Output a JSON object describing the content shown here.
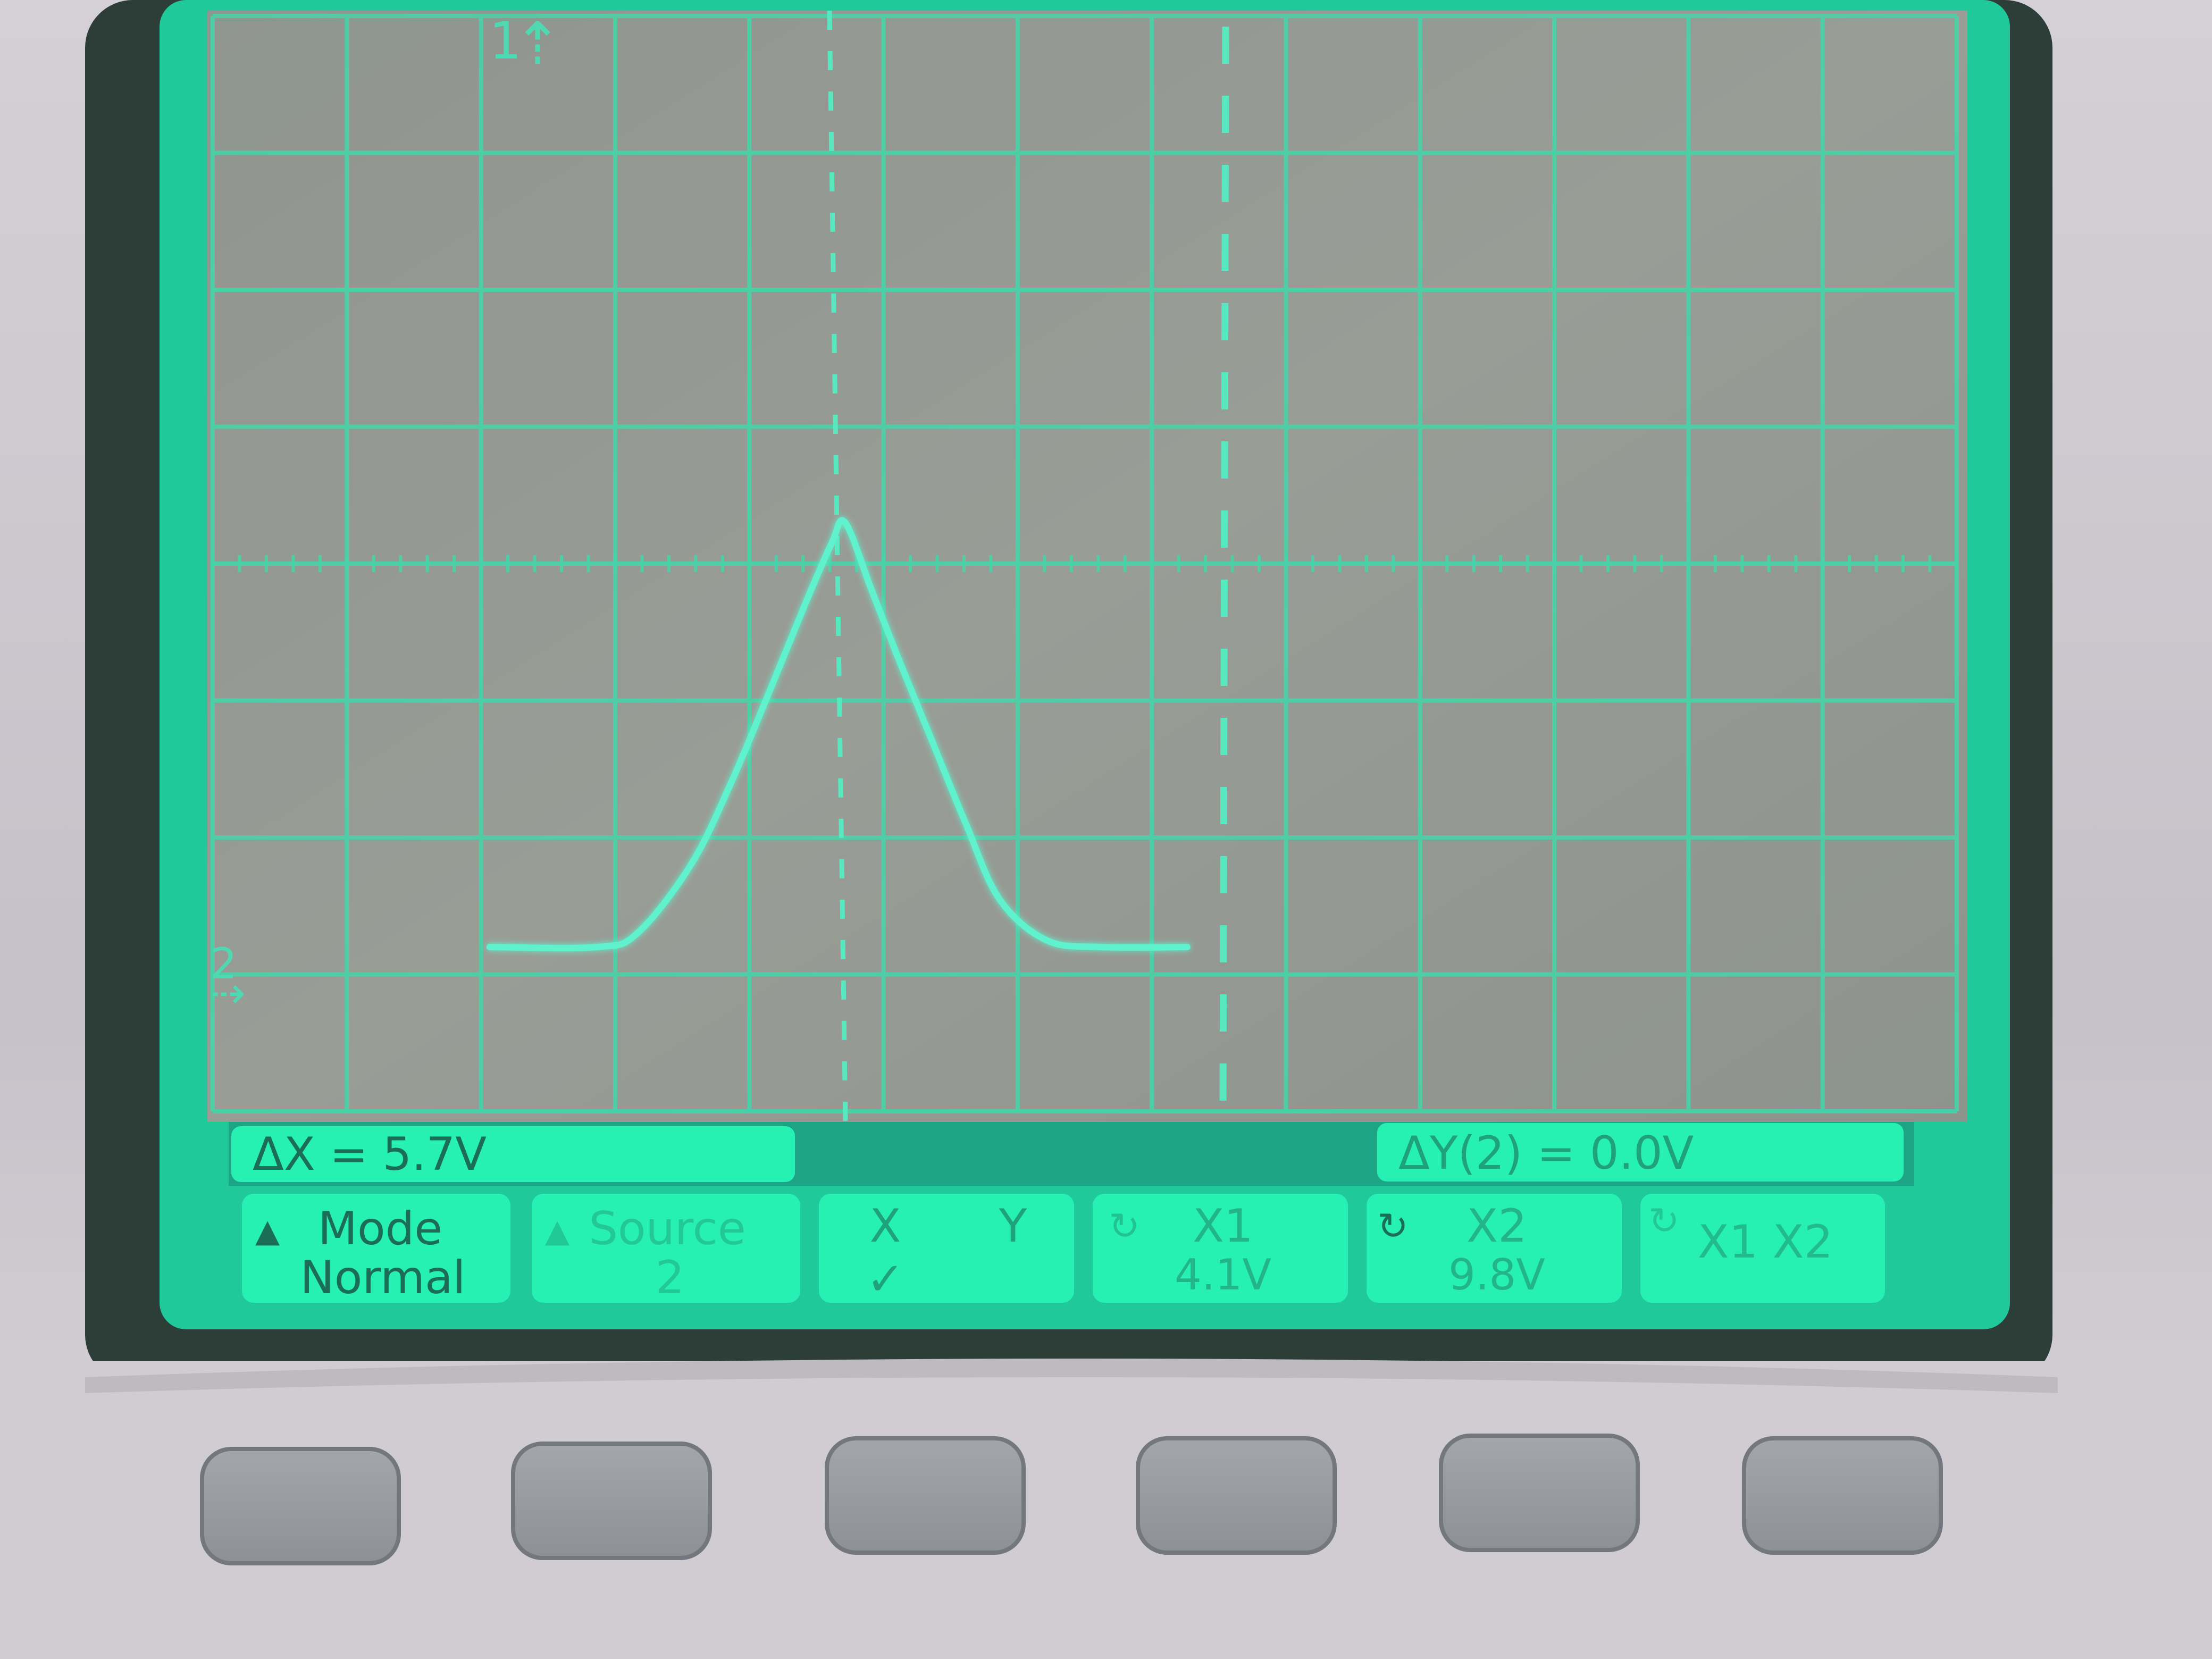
{
  "scope": {
    "channel_markers": {
      "ch1": "1",
      "ch2": "2"
    },
    "cursor_mode": "XY",
    "trace": {
      "name": "channel-2-trace",
      "points": [
        [
          -4.0,
          -2.8
        ],
        [
          -3.2,
          -2.8
        ],
        [
          -2.9,
          -2.7
        ],
        [
          -2.5,
          -2.2
        ],
        [
          -2.2,
          -1.6
        ],
        [
          -1.9,
          -0.9
        ],
        [
          -1.65,
          -0.3
        ],
        [
          -1.45,
          0.15
        ],
        [
          -1.35,
          0.3
        ],
        [
          -1.15,
          -0.2
        ],
        [
          -0.95,
          -0.7
        ],
        [
          -0.7,
          -1.3
        ],
        [
          -0.45,
          -1.9
        ],
        [
          -0.2,
          -2.45
        ],
        [
          0.15,
          -2.75
        ],
        [
          0.55,
          -2.8
        ],
        [
          1.2,
          -2.8
        ]
      ]
    }
  },
  "readouts": {
    "delta_x": "ΔX = 5.7V",
    "delta_y": "ΔY(2) = 0.0V"
  },
  "softkeys": [
    {
      "line1": "Mode",
      "line2": "Normal",
      "prefix": "▲"
    },
    {
      "line1": "Source",
      "line2": "2",
      "prefix": "▲"
    },
    {
      "line1": "X",
      "line1b": "Y",
      "line2": "✓"
    },
    {
      "line1": "X1",
      "line2": "4.1V",
      "prefix": "↻"
    },
    {
      "line1": "X2",
      "line2": "9.8V",
      "prefix": "↻"
    },
    {
      "line1": "X1 X2",
      "line2": "",
      "prefix": "↻"
    }
  ],
  "colors": {
    "screen_bg": "#9b9f9a",
    "grid": "#47d4a8",
    "trace": "#5ff2cc",
    "softkey_bg": "#26f0b4",
    "softkey_text": "#1b6e55",
    "bezel": "#2e4a40"
  }
}
